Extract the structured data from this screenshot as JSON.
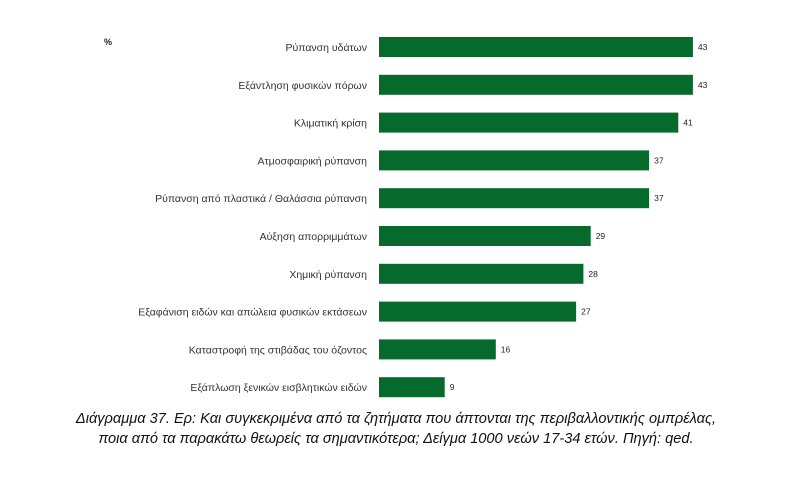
{
  "chart_data": {
    "type": "bar",
    "orientation": "horizontal",
    "unit": "%",
    "categories": [
      "Ρύπανση υδάτων",
      "Εξάντληση φυσικών πόρων",
      "Κλιματική κρίση",
      "Ατμοσφαιρική ρύπανση",
      "Ρύπανση από πλαστικά / Θαλάσσια ρύπανση",
      "Αύξηση απορριμμάτων",
      "Χημική ρύπανση",
      "Εξαφάνιση ειδών και απώλεια φυσικών εκτάσεων",
      "Καταστροφή της στιβάδας του όζοντος",
      "Εξάπλωση ξενικών εισβλητικών ειδών"
    ],
    "values": [
      43,
      43,
      41,
      37,
      37,
      29,
      28,
      27,
      16,
      9
    ],
    "bar_color": "#066a2c",
    "xlim": [
      0,
      48
    ],
    "grid": false,
    "data_labels": true
  },
  "caption": {
    "line1": "Διάγραμμα 37. Ερ: Και συγκεκριμένα από τα ζητήματα που άπτονται της περιβαλλοντικής ομπρέλας,",
    "line2": "ποια από τα παρακάτω θεωρείς τα σημαντικότερα; Δείγμα 1000 νεών 17-34 ετών. Πηγή: qed."
  }
}
